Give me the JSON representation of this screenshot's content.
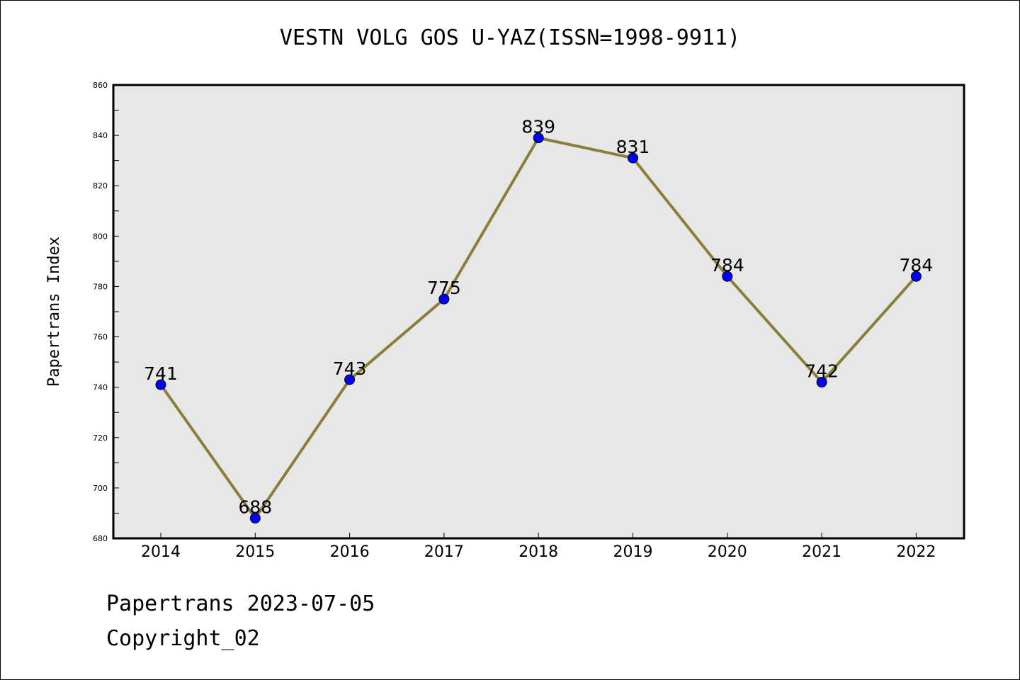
{
  "chart_data": {
    "type": "line",
    "title": "VESTN VOLG GOS U-YAZ(ISSN=1998-9911)",
    "xlabel": "",
    "ylabel": "Papertrans Index",
    "categories": [
      "2014",
      "2015",
      "2016",
      "2017",
      "2018",
      "2019",
      "2020",
      "2021",
      "2022"
    ],
    "series": [
      {
        "values": [
          741,
          688,
          743,
          775,
          839,
          831,
          784,
          742,
          784
        ]
      }
    ],
    "data_labels": [
      "741",
      "688",
      "743",
      "775",
      "839",
      "831",
      "784",
      "742",
      "784"
    ],
    "ylim": [
      680,
      860
    ],
    "yticks": [
      "680",
      "700",
      "720",
      "740",
      "760",
      "780",
      "800",
      "820",
      "840",
      "860"
    ],
    "grid": false,
    "colors": {
      "line": "#8b7d3a",
      "marker": "#0000ff",
      "plot_background": "#e7e7e7"
    }
  },
  "footer": {
    "line1": "Papertrans 2023-07-05",
    "line2": "Copyright_02"
  }
}
